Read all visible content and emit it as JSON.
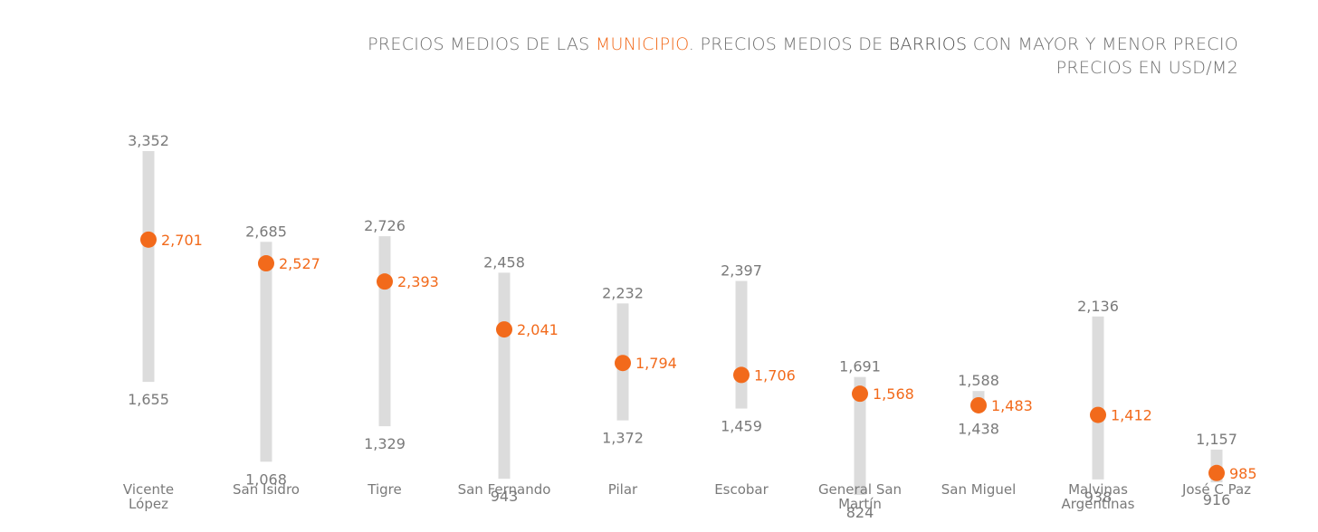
{
  "header": {
    "line1": {
      "part1": "PRECIOS MEDIOS DE LAS ",
      "highlight1": "MUNICIPIO",
      "part2": ". PRECIOS MEDIOS DE ",
      "highlight2": "BARRIOS",
      "part3": " CON MAYOR Y MENOR PRECIO"
    },
    "line2": "PRECIOS EN USD/M2"
  },
  "colors": {
    "range_bar": "#dcdcdc",
    "average_dot": "#f26a1b",
    "value_text": "#7a7a7a",
    "title_text": "#6f6f6f"
  },
  "chart_data": {
    "type": "range-dot",
    "title": "PRECIOS MEDIOS DE LAS MUNICIPIO. PRECIOS MEDIOS DE BARRIOS CON MAYOR Y MENOR PRECIO",
    "subtitle": "PRECIOS EN USD/M2",
    "categories": [
      "Vicente López",
      "San Isidro",
      "Tigre",
      "San Fernando",
      "Pilar",
      "Escobar",
      "General San Martín",
      "San Miguel",
      "Malvinas Argentinas",
      "José C Paz"
    ],
    "series": [
      {
        "name": "",
        "values": [
          3352,
          2685,
          2726,
          2458,
          2232,
          2397,
          1691,
          1588,
          2136,
          1157
        ]
      },
      {
        "name": "",
        "values": [
          2701,
          2527,
          2393,
          2041,
          1794,
          1706,
          1568,
          1483,
          1412,
          985
        ]
      },
      {
        "name": "",
        "values": [
          1655,
          1068,
          1329,
          943,
          1372,
          1459,
          824,
          1438,
          938,
          916
        ]
      }
    ],
    "value_labels": {
      "max": [
        "3,352",
        "2,685",
        "2,726",
        "2,458",
        "2,232",
        "2,397",
        "1,691",
        "1,588",
        "2,136",
        "1,157"
      ],
      "avg": [
        "2,701",
        "2,527",
        "2,393",
        "2,041",
        "1,794",
        "1,706",
        "1,568",
        "1,483",
        "1,412",
        "985"
      ],
      "min": [
        "1,655",
        "1,068",
        "1,329",
        "943",
        "1,372",
        "1,459",
        "824",
        "1,438",
        "938",
        "916"
      ]
    },
    "category_lines": [
      [
        "Vicente",
        "López"
      ],
      [
        "San Isidro"
      ],
      [
        "Tigre"
      ],
      [
        "San Fernando"
      ],
      [
        "Pilar"
      ],
      [
        "Escobar"
      ],
      [
        "General San",
        "Martín"
      ],
      [
        "San Miguel"
      ],
      [
        "Malvinas",
        "Argentinas"
      ],
      [
        "José C Paz"
      ]
    ],
    "xlabel": "",
    "ylabel": "",
    "grid": false,
    "legend": "none"
  }
}
